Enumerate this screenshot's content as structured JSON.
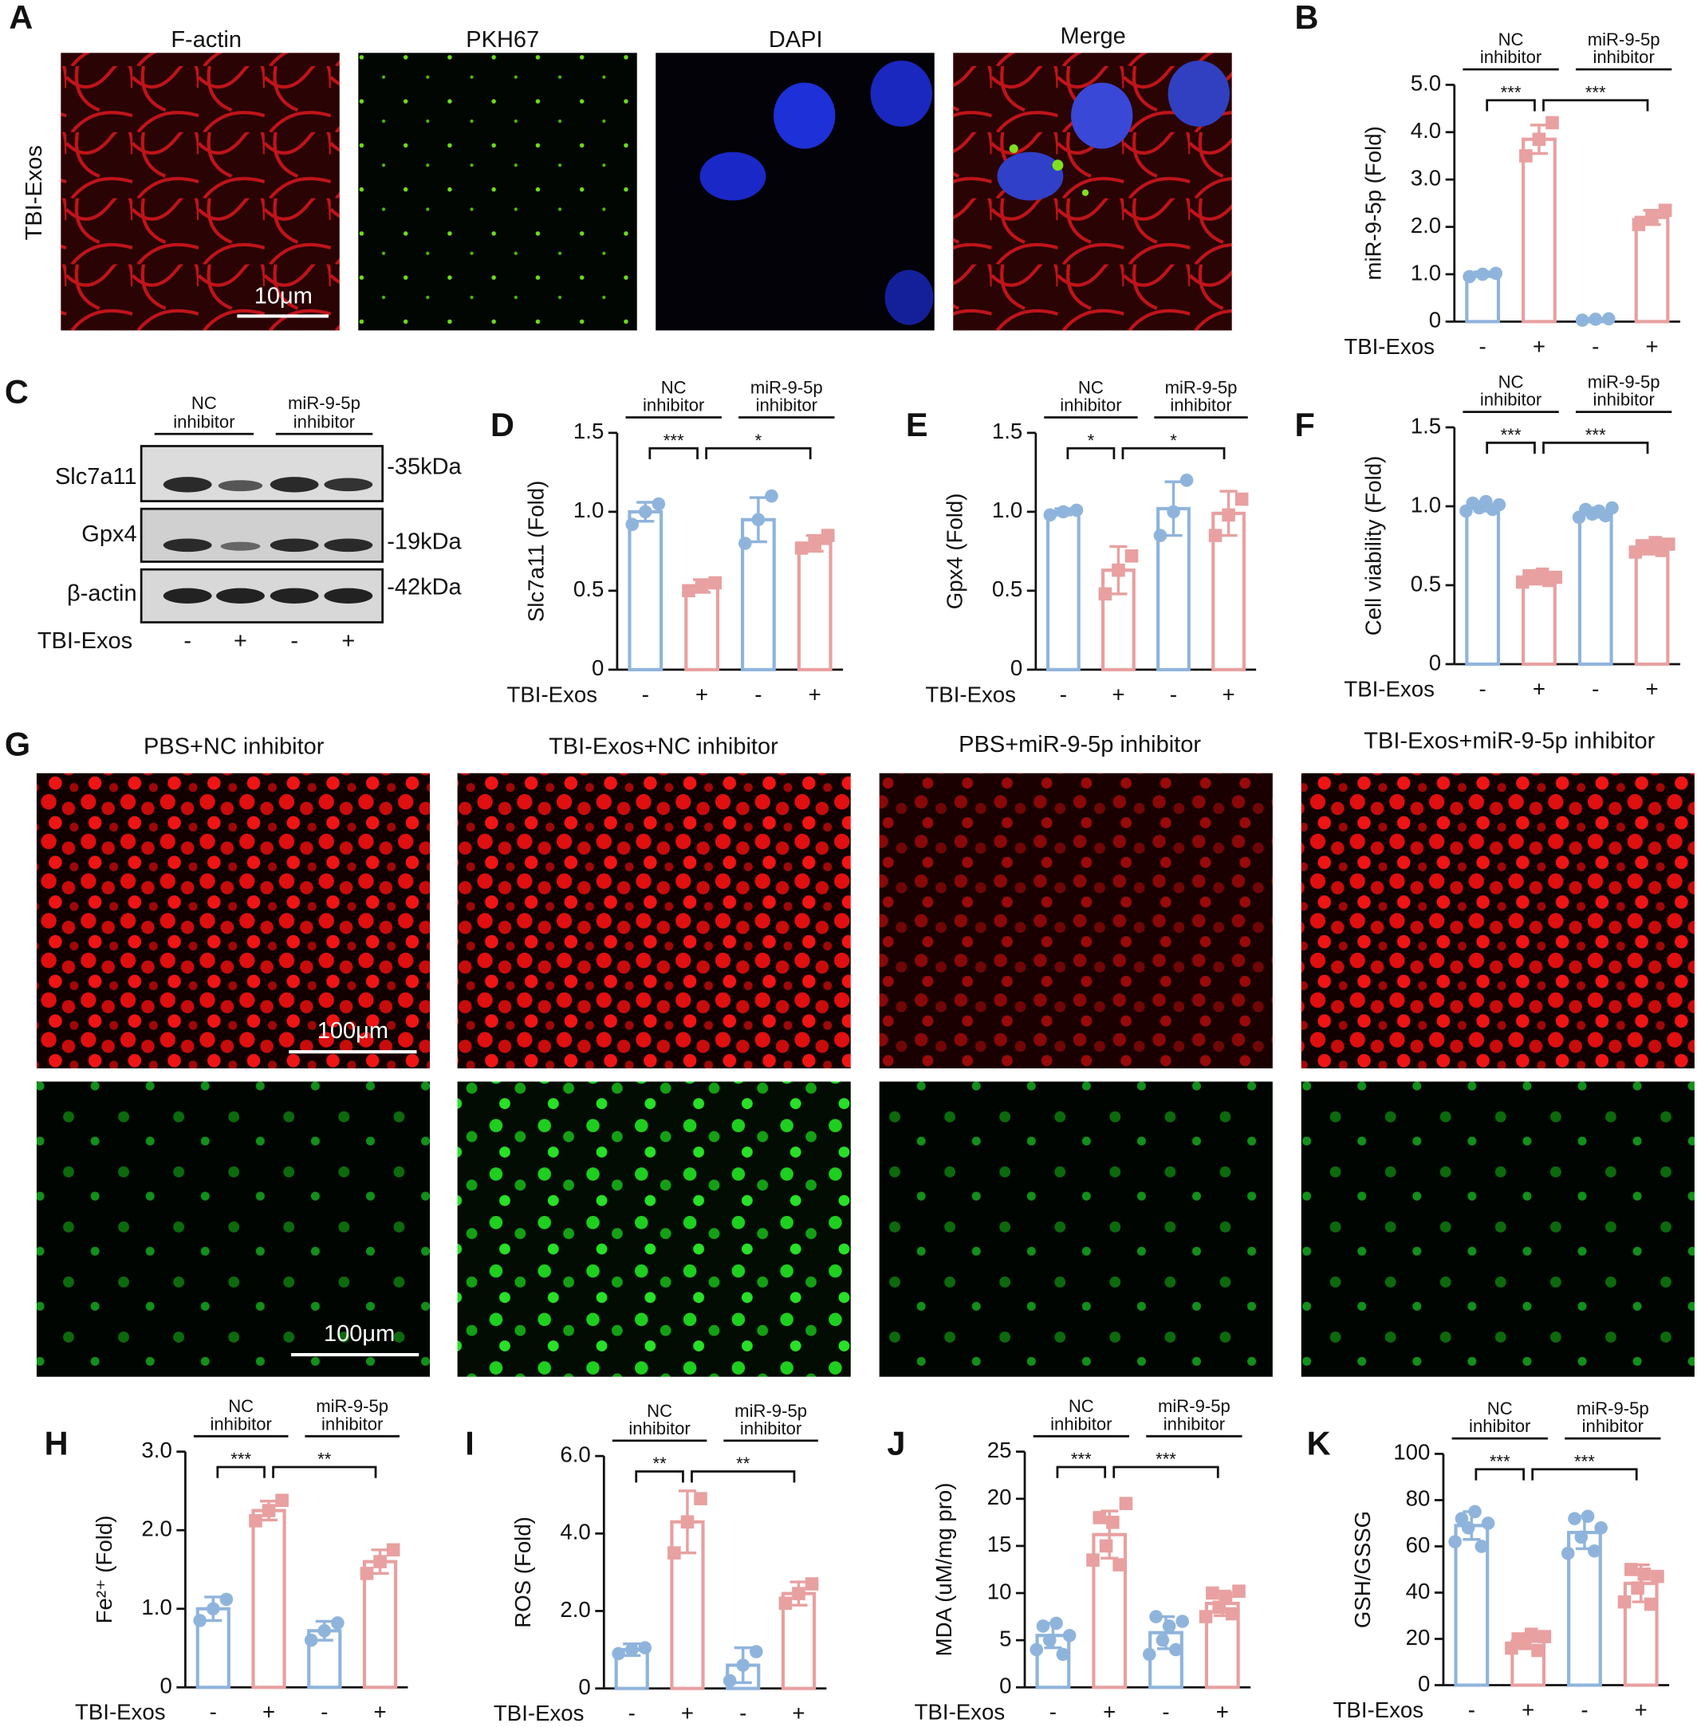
{
  "panel_a": {
    "label": "A",
    "row_label": "TBI-Exos",
    "titles": [
      "F-actin",
      "PKH67",
      "DAPI",
      "Merge"
    ],
    "scale_bar": "10μm"
  },
  "panel_c": {
    "label": "C",
    "groups": [
      {
        "line1": "NC",
        "line2": "inhibitor"
      },
      {
        "line1": "miR-9-5p",
        "line2": "inhibitor"
      }
    ],
    "proteins": [
      "Slc7a11",
      "Gpx4",
      "β-actin"
    ],
    "sizes": [
      "-35kDa",
      "-19kDa",
      "-42kDa"
    ],
    "treatment_label": "TBI-Exos",
    "treatment": [
      "-",
      "+",
      "-",
      "+"
    ]
  },
  "panel_g": {
    "label": "G",
    "titles": [
      "PBS+NC inhibitor",
      "TBI-Exos+NC inhibitor",
      "PBS+miR-9-5p inhibitor",
      "TBI-Exos+miR-9-5p inhibitor"
    ],
    "scale_bars": [
      "100μm",
      "100μm"
    ]
  },
  "chart_data": [
    {
      "type": "bar",
      "panel": "B",
      "ylabel": "miR-9-5p (Fold)",
      "x_label": "TBI-Exos",
      "categories": [
        "-",
        "+",
        "-",
        "+"
      ],
      "groups": [
        {
          "line1": "NC",
          "line2": "inhibitor"
        },
        {
          "line1": "miR-9-5p",
          "line2": "inhibitor"
        }
      ],
      "values": [
        1.0,
        3.85,
        0.05,
        2.2
      ],
      "errors": [
        0.05,
        0.3,
        0.02,
        0.15
      ],
      "points": [
        [
          0.95,
          1.0,
          1.02
        ],
        [
          3.5,
          3.85,
          4.2
        ],
        [
          0.03,
          0.05,
          0.06
        ],
        [
          2.05,
          2.2,
          2.35
        ]
      ],
      "colors": [
        "#8fb4dc",
        "#e8a0a0",
        "#8fb4dc",
        "#e8a0a0"
      ],
      "significance": [
        {
          "from": 0,
          "to": 1,
          "label": "***"
        },
        {
          "from": 1,
          "to": 3,
          "label": "***"
        }
      ],
      "ylim": [
        0,
        5
      ],
      "yticks": [
        0,
        {
          "value": 1,
          "label": "1.0"
        },
        {
          "value": 2,
          "label": "2.0"
        },
        {
          "value": 3,
          "label": "3.0"
        },
        {
          "value": 4,
          "label": "4.0"
        },
        {
          "value": 5,
          "label": "5.0"
        }
      ]
    },
    {
      "type": "bar",
      "panel": "D",
      "ylabel": "Slc7a11 (Fold)",
      "x_label": "TBI-Exos",
      "categories": [
        "-",
        "+",
        "-",
        "+"
      ],
      "groups": [
        {
          "line1": "NC",
          "line2": "inhibitor"
        },
        {
          "line1": "miR-9-5p",
          "line2": "inhibitor"
        }
      ],
      "values": [
        1.0,
        0.53,
        0.95,
        0.8
      ],
      "errors": [
        0.06,
        0.04,
        0.14,
        0.05
      ],
      "points": [
        [
          0.92,
          1.0,
          1.05
        ],
        [
          0.5,
          0.53,
          0.55
        ],
        [
          0.8,
          0.95,
          1.1
        ],
        [
          0.77,
          0.8,
          0.85
        ]
      ],
      "colors": [
        "#8fb4dc",
        "#e8a0a0",
        "#8fb4dc",
        "#e8a0a0"
      ],
      "significance": [
        {
          "from": 0,
          "to": 1,
          "label": "***"
        },
        {
          "from": 1,
          "to": 3,
          "label": "*"
        }
      ],
      "ylim": [
        0,
        1.5
      ],
      "yticks": [
        0,
        0.5,
        {
          "value": 1,
          "label": "1.0"
        },
        1.5
      ]
    },
    {
      "type": "bar",
      "panel": "E",
      "ylabel": "Gpx4 (Fold)",
      "x_label": "TBI-Exos",
      "categories": [
        "-",
        "+",
        "-",
        "+"
      ],
      "groups": [
        {
          "line1": "NC",
          "line2": "inhibitor"
        },
        {
          "line1": "miR-9-5p",
          "line2": "inhibitor"
        }
      ],
      "values": [
        1.0,
        0.63,
        1.02,
        0.99
      ],
      "errors": [
        0.02,
        0.15,
        0.17,
        0.14
      ],
      "points": [
        [
          0.98,
          1.0,
          1.01
        ],
        [
          0.48,
          0.63,
          0.72
        ],
        [
          0.85,
          1.0,
          1.2
        ],
        [
          0.85,
          0.98,
          1.08
        ]
      ],
      "colors": [
        "#8fb4dc",
        "#e8a0a0",
        "#8fb4dc",
        "#e8a0a0"
      ],
      "significance": [
        {
          "from": 0,
          "to": 1,
          "label": "*"
        },
        {
          "from": 1,
          "to": 3,
          "label": "*"
        }
      ],
      "ylim": [
        0,
        1.5
      ],
      "yticks": [
        0,
        0.5,
        {
          "value": 1,
          "label": "1.0"
        },
        1.5
      ]
    },
    {
      "type": "bar",
      "panel": "F",
      "ylabel": "Cell viability (Fold)",
      "x_label": "TBI-Exos",
      "categories": [
        "-",
        "+",
        "-",
        "+"
      ],
      "groups": [
        {
          "line1": "NC",
          "line2": "inhibitor"
        },
        {
          "line1": "miR-9-5p",
          "line2": "inhibitor"
        }
      ],
      "values": [
        1.0,
        0.55,
        0.96,
        0.74
      ],
      "errors": [
        0.03,
        0.03,
        0.03,
        0.03
      ],
      "points": [
        [
          0.97,
          1.02,
          0.99,
          1.03,
          0.98,
          1.01
        ],
        [
          0.52,
          0.56,
          0.54,
          0.57,
          0.53,
          0.55
        ],
        [
          0.93,
          0.98,
          0.95,
          0.97,
          0.94,
          0.99
        ],
        [
          0.71,
          0.75,
          0.73,
          0.77,
          0.72,
          0.76
        ]
      ],
      "colors": [
        "#8fb4dc",
        "#e8a0a0",
        "#8fb4dc",
        "#e8a0a0"
      ],
      "significance": [
        {
          "from": 0,
          "to": 1,
          "label": "***"
        },
        {
          "from": 1,
          "to": 3,
          "label": "***"
        }
      ],
      "ylim": [
        0,
        1.5
      ],
      "yticks": [
        0,
        0.5,
        {
          "value": 1,
          "label": "1.0"
        },
        1.5
      ]
    },
    {
      "type": "bar",
      "panel": "H",
      "ylabel": "Fe²⁺ (Fold)",
      "x_label": "TBI-Exos",
      "categories": [
        "-",
        "+",
        "-",
        "+"
      ],
      "groups": [
        {
          "line1": "NC",
          "line2": "inhibitor"
        },
        {
          "line1": "miR-9-5p",
          "line2": "inhibitor"
        }
      ],
      "values": [
        1.0,
        2.25,
        0.72,
        1.6
      ],
      "errors": [
        0.15,
        0.12,
        0.12,
        0.15
      ],
      "points": [
        [
          0.85,
          1.0,
          1.12
        ],
        [
          2.12,
          2.25,
          2.38
        ],
        [
          0.6,
          0.72,
          0.82
        ],
        [
          1.45,
          1.6,
          1.75
        ]
      ],
      "colors": [
        "#8fb4dc",
        "#e8a0a0",
        "#8fb4dc",
        "#e8a0a0"
      ],
      "significance": [
        {
          "from": 0,
          "to": 1,
          "label": "***"
        },
        {
          "from": 1,
          "to": 3,
          "label": "**"
        }
      ],
      "ylim": [
        0,
        3
      ],
      "yticks": [
        0,
        {
          "value": 1,
          "label": "1.0"
        },
        {
          "value": 2,
          "label": "2.0"
        },
        {
          "value": 3,
          "label": "3.0"
        }
      ]
    },
    {
      "type": "bar",
      "panel": "I",
      "ylabel": "ROS (Fold)",
      "x_label": "TBI-Exos",
      "categories": [
        "-",
        "+",
        "-",
        "+"
      ],
      "groups": [
        {
          "line1": "NC",
          "line2": "inhibitor"
        },
        {
          "line1": "miR-9-5p",
          "line2": "inhibitor"
        }
      ],
      "values": [
        1.0,
        4.3,
        0.6,
        2.45
      ],
      "errors": [
        0.15,
        0.8,
        0.45,
        0.3
      ],
      "points": [
        [
          0.9,
          1.0,
          1.05
        ],
        [
          3.5,
          4.3,
          4.9
        ],
        [
          0.2,
          0.6,
          0.95
        ],
        [
          2.2,
          2.45,
          2.7
        ]
      ],
      "colors": [
        "#8fb4dc",
        "#e8a0a0",
        "#8fb4dc",
        "#e8a0a0"
      ],
      "significance": [
        {
          "from": 0,
          "to": 1,
          "label": "**"
        },
        {
          "from": 1,
          "to": 3,
          "label": "**"
        }
      ],
      "ylim": [
        0,
        6
      ],
      "yticks": [
        0,
        {
          "value": 2,
          "label": "2.0"
        },
        {
          "value": 4,
          "label": "4.0"
        },
        {
          "value": 6,
          "label": "6.0"
        }
      ]
    },
    {
      "type": "bar",
      "panel": "J",
      "ylabel": "MDA (uM/mg pro)",
      "x_label": "TBI-Exos",
      "categories": [
        "-",
        "+",
        "-",
        "+"
      ],
      "groups": [
        {
          "line1": "NC",
          "line2": "inhibitor"
        },
        {
          "line1": "miR-9-5p",
          "line2": "inhibitor"
        }
      ],
      "values": [
        5.5,
        16.2,
        5.8,
        8.9
      ],
      "errors": [
        1.3,
        2.5,
        1.7,
        1.3
      ],
      "points": [
        [
          4.0,
          6.5,
          5.0,
          6.8,
          3.5,
          5.5
        ],
        [
          13.5,
          18.0,
          15.0,
          17.5,
          13.0,
          19.5
        ],
        [
          3.5,
          7.5,
          5.0,
          6.5,
          4.0,
          7.0
        ],
        [
          7.5,
          10.0,
          8.5,
          9.5,
          7.8,
          10.2
        ]
      ],
      "colors": [
        "#8fb4dc",
        "#e8a0a0",
        "#8fb4dc",
        "#e8a0a0"
      ],
      "significance": [
        {
          "from": 0,
          "to": 1,
          "label": "***"
        },
        {
          "from": 1,
          "to": 3,
          "label": "***"
        }
      ],
      "ylim": [
        0,
        25
      ],
      "yticks": [
        0,
        5,
        10,
        15,
        20,
        25
      ]
    },
    {
      "type": "bar",
      "panel": "K",
      "ylabel": "GSH/GSSG",
      "x_label": "TBI-Exos",
      "categories": [
        "-",
        "+",
        "-",
        "+"
      ],
      "groups": [
        {
          "line1": "NC",
          "line2": "inhibitor"
        },
        {
          "line1": "miR-9-5p",
          "line2": "inhibitor"
        }
      ],
      "values": [
        69,
        19,
        66,
        44
      ],
      "errors": [
        6,
        3,
        7,
        8
      ],
      "points": [
        [
          62,
          72,
          68,
          75,
          60,
          70
        ],
        [
          16,
          20,
          18,
          22,
          15,
          21
        ],
        [
          57,
          72,
          64,
          73,
          58,
          68
        ],
        [
          36,
          50,
          42,
          48,
          35,
          47
        ]
      ],
      "colors": [
        "#8fb4dc",
        "#e8a0a0",
        "#8fb4dc",
        "#e8a0a0"
      ],
      "significance": [
        {
          "from": 0,
          "to": 1,
          "label": "***"
        },
        {
          "from": 1,
          "to": 3,
          "label": "***"
        }
      ],
      "ylim": [
        0,
        100
      ],
      "yticks": [
        0,
        20,
        40,
        60,
        80,
        100
      ]
    }
  ]
}
